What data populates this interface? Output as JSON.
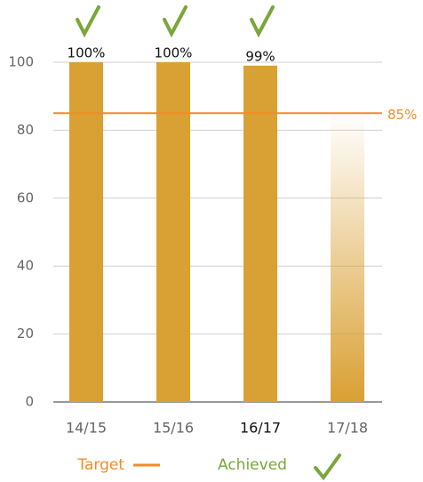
{
  "chart_data": {
    "type": "bar",
    "categories": [
      "14/15",
      "15/16",
      "16/17",
      "17/18"
    ],
    "values": [
      100,
      100,
      99,
      85
    ],
    "value_labels": [
      "100%",
      "100%",
      "99%",
      null
    ],
    "bar_styles": [
      "solid",
      "solid",
      "solid",
      "gradient"
    ],
    "color": "#d9a033",
    "ylim": [
      0,
      100
    ],
    "yticks": [
      0,
      20,
      40,
      60,
      80,
      100
    ],
    "grid": true,
    "target": {
      "value": 85,
      "label": "85%",
      "color": "#f28c28"
    },
    "legend": {
      "target": "Target",
      "achieved": "Achieved",
      "achieved_color": "#7aa63a"
    }
  }
}
